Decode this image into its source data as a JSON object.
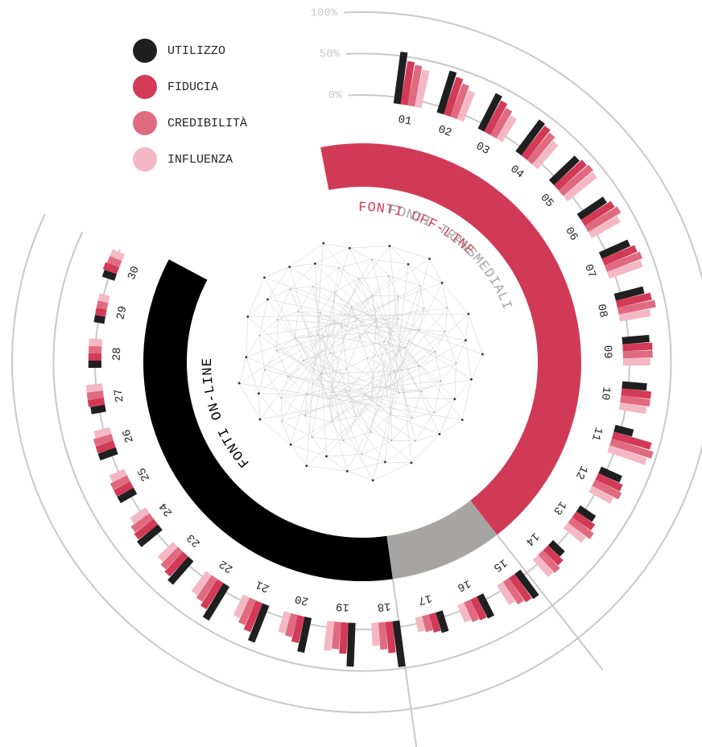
{
  "chart_data": {
    "type": "radial_bar",
    "categories": [
      "01",
      "02",
      "03",
      "04",
      "05",
      "06",
      "07",
      "08",
      "09",
      "10",
      "11",
      "12",
      "13",
      "14",
      "15",
      "16",
      "17",
      "18",
      "19",
      "20",
      "21",
      "22",
      "23",
      "24",
      "25",
      "26",
      "27",
      "28",
      "29",
      "30"
    ],
    "series": [
      {
        "name": "UTILIZZO",
        "color": "#1f1f1f",
        "values": [
          55,
          45,
          40,
          40,
          35,
          30,
          30,
          28,
          25,
          22,
          15,
          20,
          15,
          12,
          30,
          22,
          18,
          48,
          45,
          35,
          40,
          40,
          30,
          25,
          15,
          15,
          10,
          8,
          5,
          8
        ]
      },
      {
        "name": "FIDUCIA",
        "color": "#d23a57",
        "values": [
          45,
          40,
          35,
          38,
          38,
          35,
          35,
          35,
          28,
          28,
          40,
          25,
          20,
          18,
          28,
          20,
          15,
          30,
          30,
          25,
          30,
          30,
          25,
          22,
          15,
          15,
          12,
          8,
          5,
          10
        ]
      },
      {
        "name": "CREDIBILITÀ",
        "color": "#e06a80",
        "values": [
          42,
          35,
          30,
          35,
          40,
          38,
          38,
          38,
          28,
          28,
          45,
          28,
          25,
          22,
          25,
          18,
          12,
          25,
          25,
          20,
          25,
          25,
          22,
          20,
          15,
          15,
          12,
          8,
          5,
          8
        ]
      },
      {
        "name": "INFLUENZA",
        "color": "#f4b8c4",
        "values": [
          38,
          30,
          25,
          30,
          38,
          32,
          35,
          30,
          25,
          25,
          40,
          22,
          20,
          20,
          20,
          15,
          10,
          20,
          28,
          18,
          20,
          22,
          18,
          15,
          12,
          12,
          12,
          8,
          5,
          8
        ]
      }
    ],
    "ylim": [
      0,
      100
    ],
    "yticks": [
      {
        "value": 0,
        "label": "0%"
      },
      {
        "value": 50,
        "label": "50%"
      },
      {
        "value": 100,
        "label": "100%"
      }
    ],
    "groups": [
      {
        "name": "FONTI OFF-LINE",
        "color": "#d13a57"
      },
      {
        "name": "FONTI TRANSMEDIALI",
        "color": "#a6a5a3"
      },
      {
        "name": "FONTI ON-LINE",
        "color": "#000000"
      }
    ]
  }
}
